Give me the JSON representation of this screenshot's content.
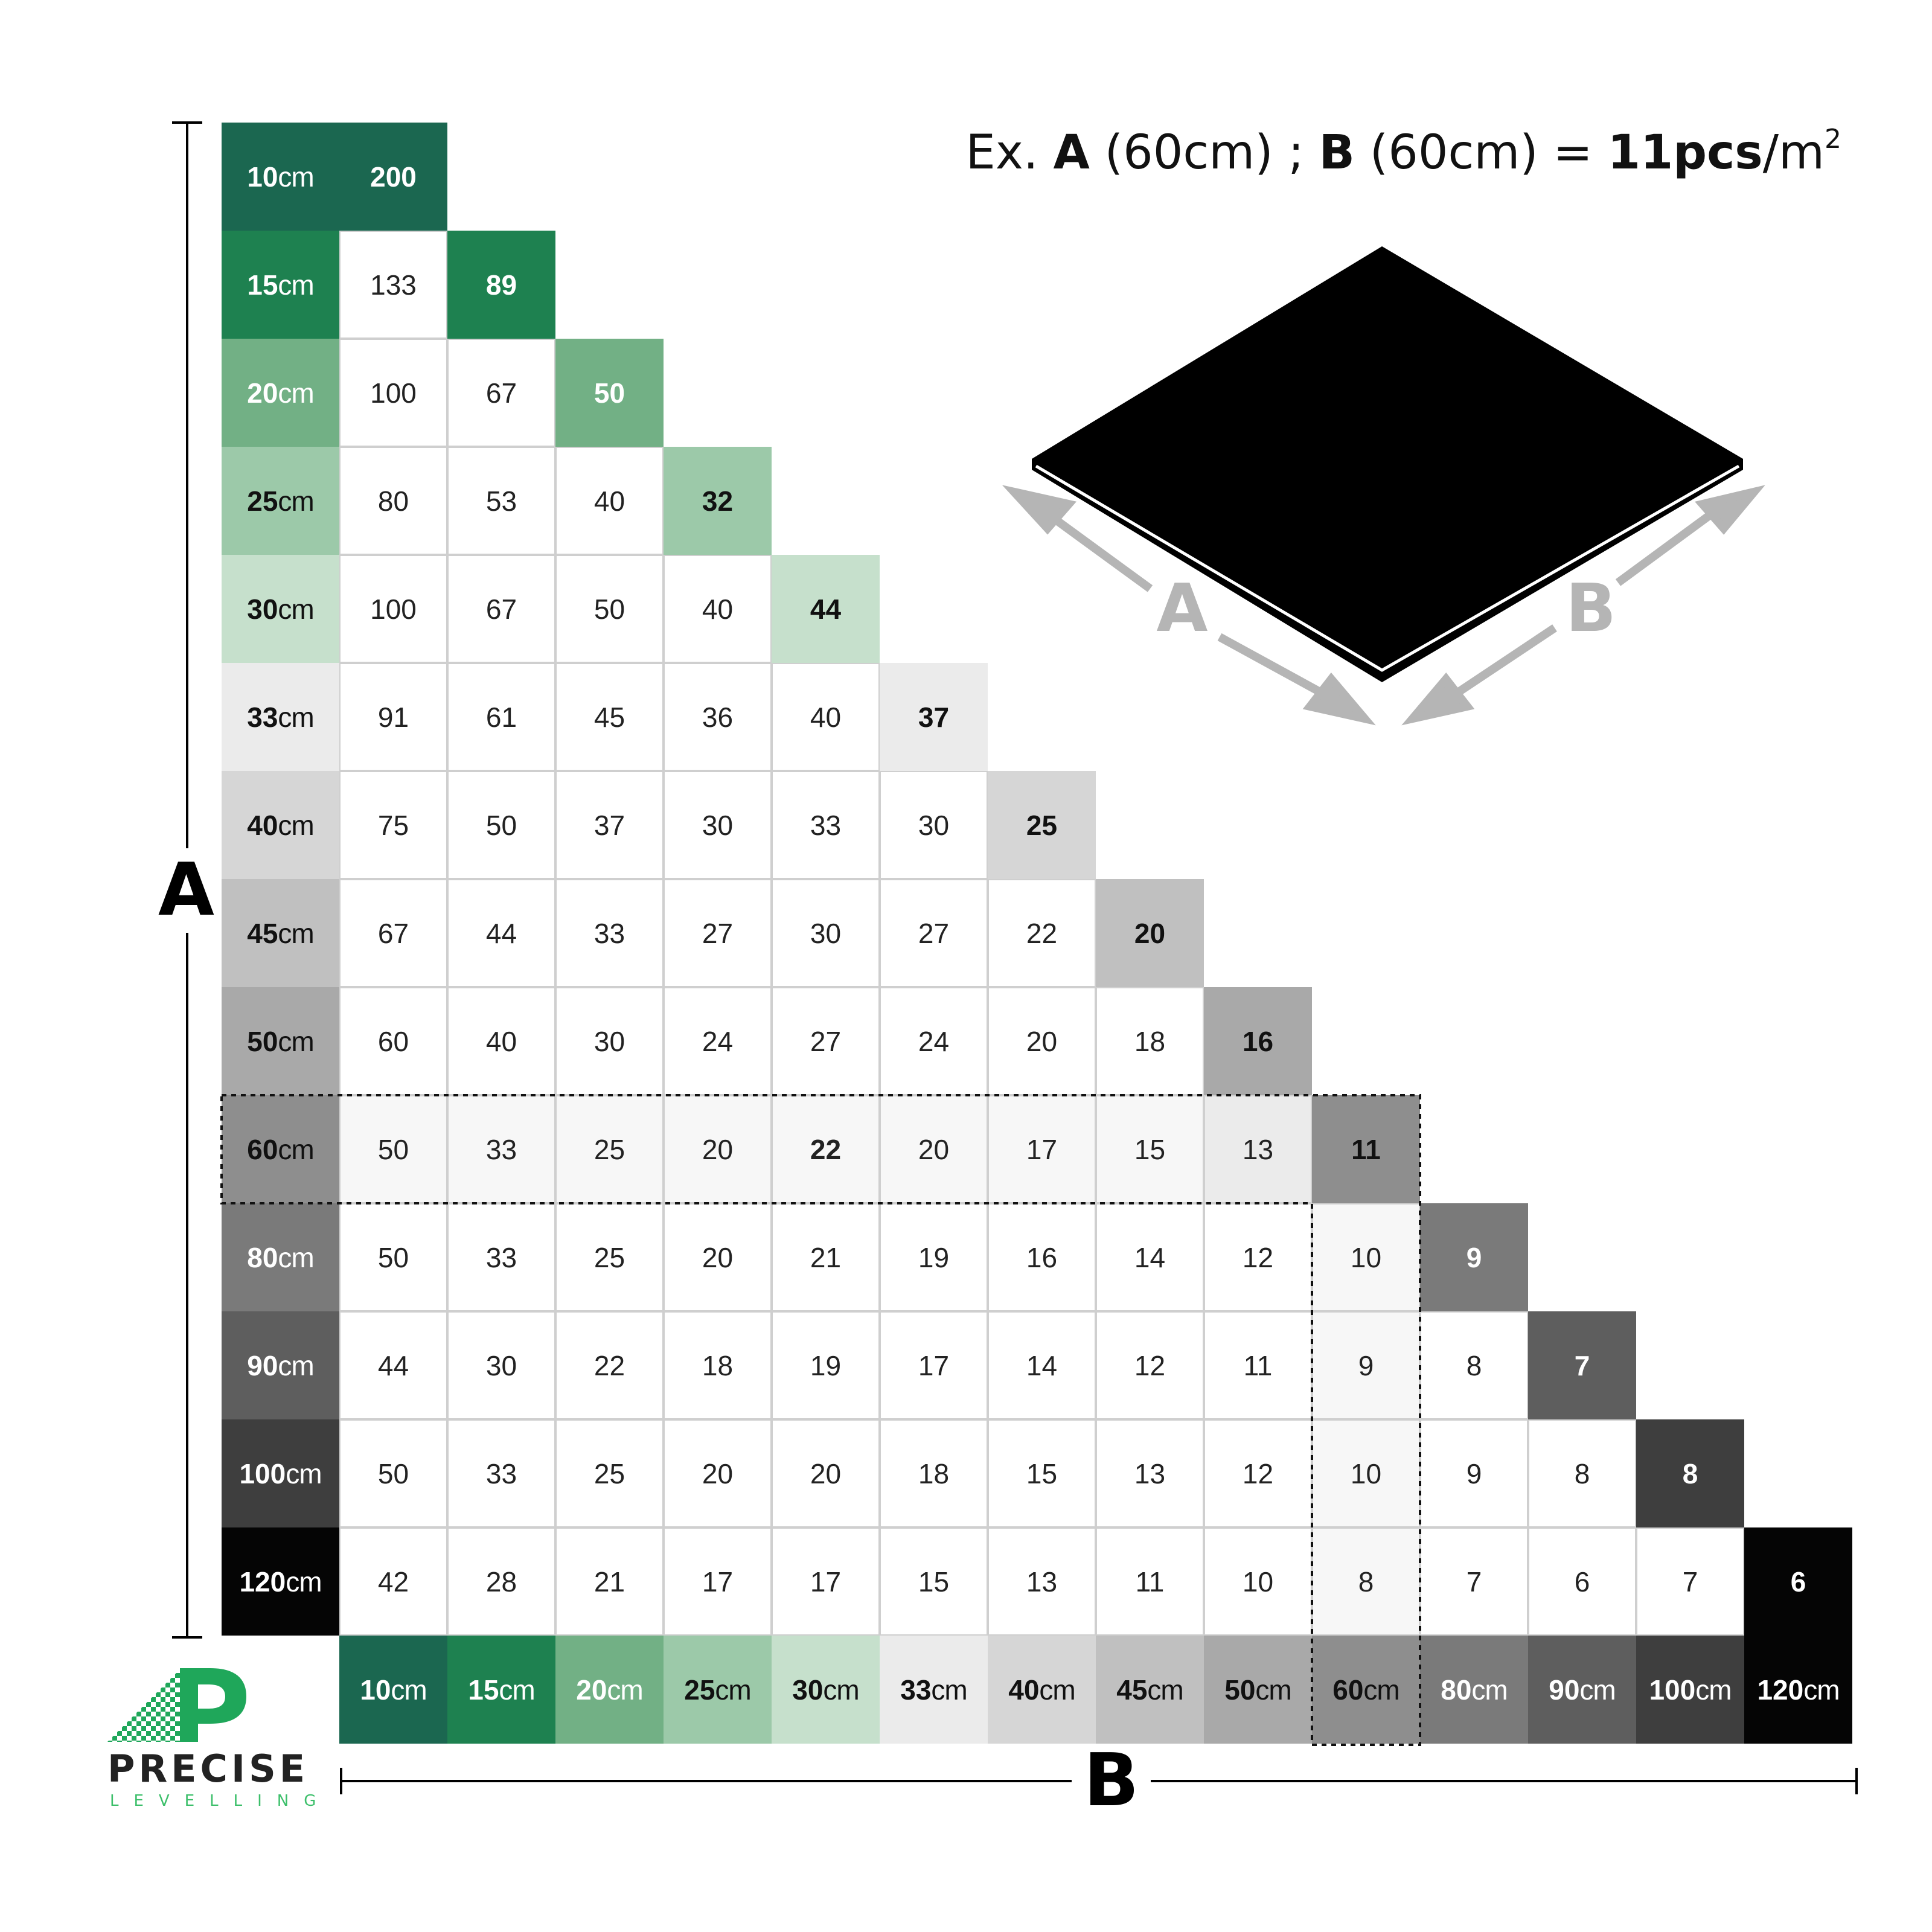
{
  "title": {
    "prefix": "Ex. ",
    "a": "A",
    "a_val": " (60cm) ; ",
    "b": "B",
    "b_val": " (60cm) = ",
    "result": "11pcs",
    "unit": "/m",
    "sup": "2"
  },
  "axis": {
    "a_label": "A",
    "b_label": "B"
  },
  "illustration": {
    "a_label": "A",
    "b_label": "B",
    "tile_color": "#000000",
    "arrow_color": "#b5b5b5"
  },
  "logo": {
    "word": "PRECISE",
    "sub": "LEVELLING",
    "green": "#1fa75a"
  },
  "unit": "cm",
  "sizes": [
    "10",
    "15",
    "20",
    "25",
    "30",
    "33",
    "40",
    "45",
    "50",
    "60",
    "80",
    "90",
    "100",
    "120"
  ],
  "size_colors": [
    "#1b6750",
    "#1e8150",
    "#72b085",
    "#9cc9a9",
    "#c6e0cc",
    "#ebebeb",
    "#d6d6d6",
    "#c0c0c0",
    "#a9a9a9",
    "#8e8e8e",
    "#7a7a7a",
    "#5e5e5e",
    "#3e3e3e",
    "#050505"
  ],
  "size_text_colors": [
    "#ffffff",
    "#ffffff",
    "#ffffff",
    "#111111",
    "#111111",
    "#111111",
    "#111111",
    "#111111",
    "#111111",
    "#111111",
    "#ffffff",
    "#ffffff",
    "#ffffff",
    "#ffffff"
  ],
  "rows": [
    [
      200
    ],
    [
      133,
      89
    ],
    [
      100,
      67,
      50
    ],
    [
      80,
      53,
      40,
      32
    ],
    [
      100,
      67,
      50,
      40,
      44
    ],
    [
      91,
      61,
      45,
      36,
      40,
      37
    ],
    [
      75,
      50,
      37,
      30,
      33,
      30,
      25
    ],
    [
      67,
      44,
      33,
      27,
      30,
      27,
      22,
      20
    ],
    [
      60,
      40,
      30,
      24,
      27,
      24,
      20,
      18,
      16
    ],
    [
      50,
      33,
      25,
      20,
      22,
      20,
      17,
      15,
      13,
      11
    ],
    [
      50,
      33,
      25,
      20,
      21,
      19,
      16,
      14,
      12,
      10,
      9
    ],
    [
      44,
      30,
      22,
      18,
      19,
      17,
      14,
      12,
      11,
      9,
      8,
      7
    ],
    [
      50,
      33,
      25,
      20,
      20,
      18,
      15,
      13,
      12,
      10,
      9,
      8,
      8
    ],
    [
      42,
      28,
      21,
      17,
      17,
      15,
      13,
      11,
      10,
      8,
      7,
      6,
      7,
      6
    ]
  ],
  "example": {
    "a": "60",
    "b": "60",
    "value": 11,
    "highlight_color": "#f7f7f7"
  },
  "emphasized": [
    {
      "row": "60",
      "col": "30"
    }
  ]
}
